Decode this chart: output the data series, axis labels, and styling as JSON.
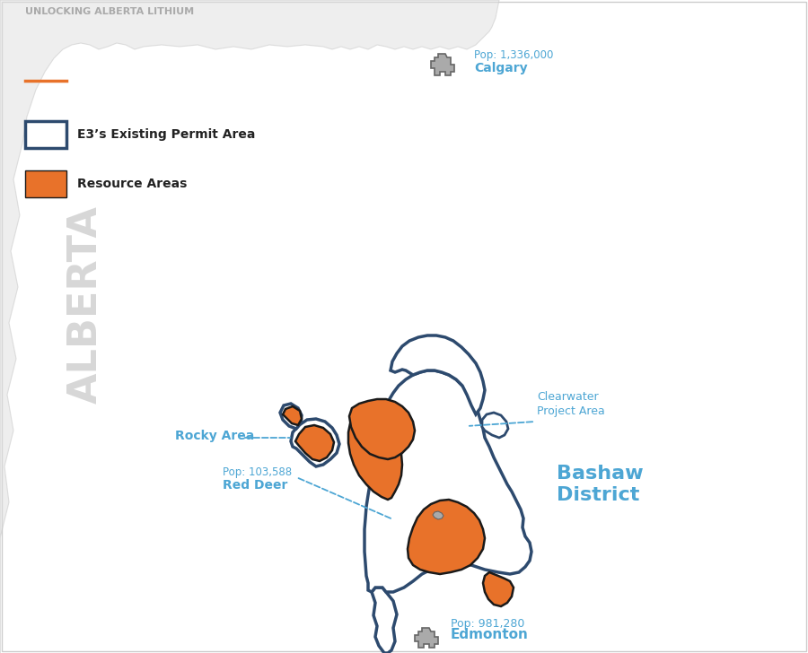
{
  "background_color": "#ffffff",
  "figure_size": [
    9.0,
    7.28
  ],
  "dpi": 100,
  "title_text": "UNLOCKING ALBERTA LITHIUM",
  "title_color": "#aaaaaa",
  "label_color_blue": "#4da6d4",
  "orange_color": "#e8722a",
  "dark_outline_color": "#1a1a1a",
  "permit_outline_color": "#2d4a6e",
  "city_fill": "#aaaaaa",
  "alberta_fill": "#e0e0e0",
  "legend_resource_label": "Resource Areas",
  "legend_permit_label": "E3’s Existing Permit Area"
}
